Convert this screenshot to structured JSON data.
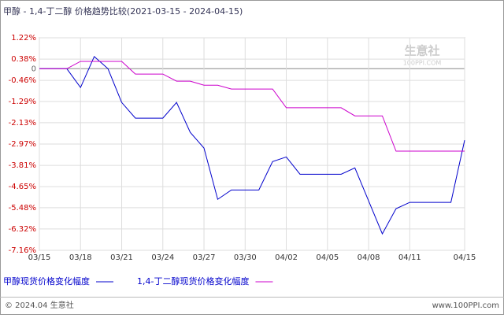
{
  "chart_data": {
    "type": "line",
    "title": "甲醇 - 1,4-丁二醇 价格趋势比较(2021-03-15 - 2024-04-15)",
    "watermark": "生意社",
    "watermark_sub": "100PPI.COM",
    "footer_left": "© 2024.04 生意社",
    "footer_right": "www.100PPI.com",
    "categories": [
      "03/15",
      null,
      null,
      "03/18",
      null,
      null,
      "03/21",
      null,
      null,
      "03/24",
      null,
      null,
      "03/27",
      null,
      null,
      "03/30",
      null,
      null,
      "04/02",
      null,
      null,
      "04/05",
      null,
      null,
      "04/08",
      null,
      null,
      "04/11",
      null,
      null,
      null,
      "04/15"
    ],
    "series": [
      {
        "name": "甲醇现货价格变化幅度",
        "color": "#0000cc",
        "values": [
          0,
          0,
          0,
          -0.74,
          0.48,
          0,
          -1.33,
          -1.95,
          -1.95,
          -1.95,
          -1.33,
          -2.51,
          -3.13,
          -5.15,
          -4.78,
          -4.78,
          -4.78,
          -3.66,
          -3.48,
          -4.16,
          -4.16,
          -4.16,
          -4.16,
          -3.91,
          -5.21,
          -6.51,
          -5.52,
          -5.27,
          -5.27,
          -5.27,
          -5.27,
          -2.82
        ]
      },
      {
        "name": "1,4-丁二醇现货价格变化幅度",
        "color": "#cc00cc",
        "values": [
          0,
          0,
          0,
          0.29,
          0.29,
          0.29,
          0.29,
          -0.21,
          -0.21,
          -0.21,
          -0.49,
          -0.49,
          -0.65,
          -0.65,
          -0.8,
          -0.8,
          -0.8,
          -0.8,
          -1.54,
          -1.54,
          -1.54,
          -1.54,
          -1.54,
          -1.86,
          -1.86,
          -1.86,
          -3.25,
          -3.25,
          -3.25,
          -3.25,
          -3.25,
          -3.25
        ]
      }
    ],
    "ylim": [
      -7.16,
      1.22
    ],
    "yticks": [
      {
        "value": 1.22,
        "label": "1.22%"
      },
      {
        "value": 0.38,
        "label": "0.38%"
      },
      0,
      {
        "value": -0.46,
        "label": "-0.46%"
      },
      {
        "value": -1.29,
        "label": "-1.29%"
      },
      {
        "value": -2.13,
        "label": "-2.13%"
      },
      {
        "value": -2.97,
        "label": "-2.97%"
      },
      {
        "value": -3.81,
        "label": "-3.81%"
      },
      {
        "value": -4.65,
        "label": "-4.65%"
      },
      {
        "value": -5.48,
        "label": "-5.48%"
      },
      {
        "value": -6.32,
        "label": "-6.32%"
      },
      {
        "value": -7.16,
        "label": "-7.16%"
      }
    ],
    "grid": true
  }
}
